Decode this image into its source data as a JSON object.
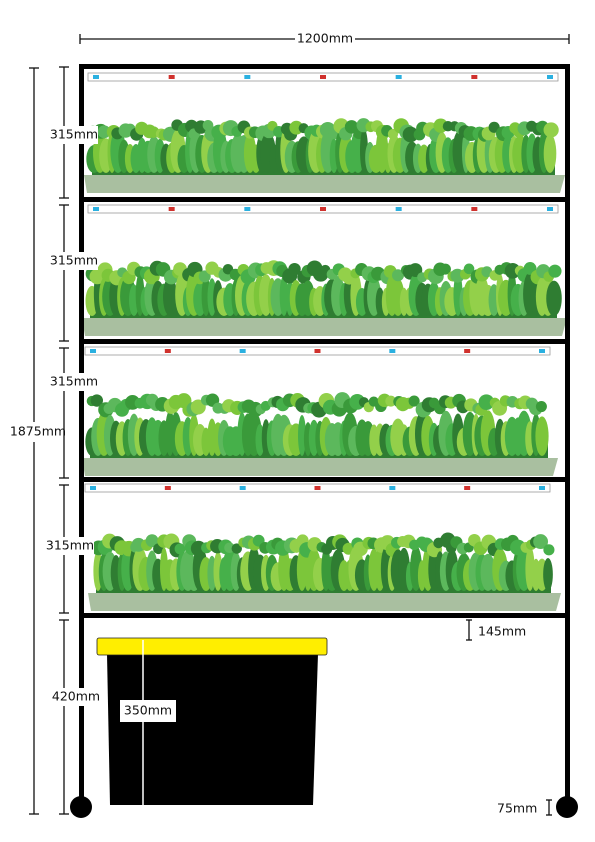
{
  "dimensions": {
    "width": "1200mm",
    "height": "1875mm",
    "shelf_heights": [
      "315mm",
      "315mm",
      "315mm",
      "315mm"
    ],
    "reservoir_clearance": "420mm",
    "reservoir_height": "350mm",
    "top_gap": "145mm",
    "wheel_height": "75mm"
  }
}
